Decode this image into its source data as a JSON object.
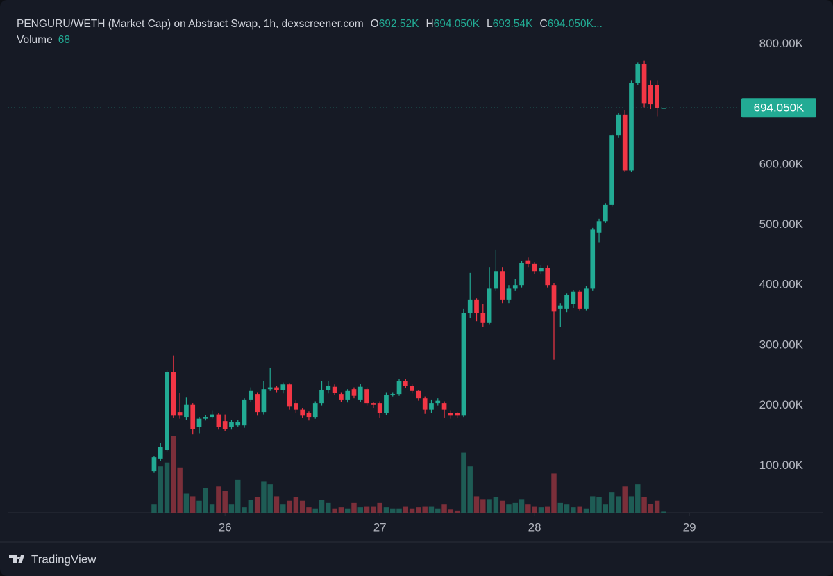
{
  "chart_data": {
    "type": "candlestick",
    "title": "PENGURU/WETH (Market Cap) on Abstract Swap, 1h, dexscreener.com",
    "legend_keys": [
      "O",
      "H",
      "L",
      "C"
    ],
    "last_bar_labels": {
      "open": "692.52K",
      "high": "694.050K",
      "low": "693.54K",
      "close": "694.050K..."
    },
    "volume_label": "Volume",
    "price_label": "694.050K",
    "brand": "TradingView",
    "up_color": "#22ab94",
    "down_color": "#f23645",
    "up_volume_color": "#1e5c55",
    "down_volume_color": "#7b2f3a",
    "x": [
      -11,
      -10,
      -9,
      -8,
      -7,
      -6,
      -5,
      -4,
      -3,
      -2,
      -1,
      0,
      1,
      2,
      3,
      4,
      5,
      6,
      7,
      8,
      9,
      10,
      11,
      12,
      13,
      14,
      15,
      16,
      17,
      18,
      19,
      20,
      21,
      22,
      23,
      24,
      25,
      26,
      27,
      28,
      29,
      30,
      31,
      32,
      33,
      34,
      35,
      36,
      37,
      38,
      39,
      40,
      41,
      42,
      43,
      44,
      45,
      46,
      47,
      48,
      49,
      50,
      51,
      52,
      53,
      54,
      55,
      56,
      57,
      58,
      59,
      60,
      61,
      62,
      63,
      64,
      65,
      66,
      67,
      68
    ],
    "open": [
      91,
      112,
      126,
      256,
      189,
      181,
      201,
      164,
      178,
      181,
      185,
      174,
      164,
      167,
      167,
      210,
      219,
      189,
      227,
      230,
      225,
      235,
      204,
      193,
      187,
      181,
      204,
      225,
      231,
      219,
      210,
      227,
      210,
      227,
      204,
      204,
      187,
      218,
      219,
      241,
      232,
      224,
      212,
      193,
      204,
      204,
      187,
      187,
      183,
      354,
      375,
      354,
      337,
      394,
      423,
      375,
      394,
      400,
      441,
      435,
      423,
      429,
      400,
      360,
      360,
      368,
      389,
      360,
      394,
      487,
      506,
      533,
      648,
      683,
      590,
      735,
      767,
      732,
      732,
      692.52
    ],
    "high": [
      116,
      138,
      258,
      283,
      221,
      213,
      204,
      181,
      184,
      192,
      188,
      185,
      176,
      176,
      212,
      230,
      222,
      240,
      263,
      233,
      238,
      237,
      210,
      196,
      190,
      207,
      240,
      240,
      235,
      222,
      227,
      230,
      236,
      230,
      206,
      207,
      222,
      222,
      244,
      244,
      235,
      226,
      215,
      210,
      212,
      207,
      192,
      189,
      360,
      420,
      378,
      368,
      430,
      458,
      430,
      400,
      410,
      440,
      446,
      438,
      433,
      432,
      403,
      370,
      386,
      392,
      392,
      398,
      495,
      510,
      536,
      650,
      686,
      690,
      740,
      770,
      772,
      740,
      740,
      694.05
    ],
    "low": [
      88,
      108,
      124,
      180,
      178,
      176,
      152,
      154,
      175,
      178,
      160,
      158,
      160,
      165,
      163,
      206,
      183,
      185,
      224,
      222,
      220,
      193,
      188,
      180,
      175,
      178,
      200,
      220,
      218,
      206,
      205,
      212,
      206,
      200,
      196,
      180,
      184,
      215,
      216,
      229,
      220,
      208,
      186,
      188,
      200,
      180,
      178,
      180,
      181,
      345,
      340,
      330,
      334,
      390,
      370,
      370,
      390,
      396,
      430,
      418,
      418,
      396,
      276,
      330,
      355,
      362,
      358,
      358,
      390,
      470,
      503,
      530,
      645,
      588,
      588,
      732,
      695,
      692,
      680,
      693.54
    ],
    "close": [
      114,
      131,
      256,
      183,
      183,
      201,
      161,
      178,
      181,
      185,
      164,
      161,
      173,
      172,
      210,
      224,
      189,
      227,
      230,
      225,
      235,
      198,
      193,
      183,
      181,
      204,
      225,
      233,
      221,
      210,
      224,
      216,
      231,
      204,
      201,
      187,
      218,
      219,
      241,
      232,
      224,
      212,
      193,
      204,
      208,
      193,
      183,
      183,
      354,
      375,
      354,
      337,
      394,
      423,
      375,
      394,
      400,
      437,
      435,
      423,
      429,
      400,
      356,
      366,
      383,
      389,
      360,
      394,
      492,
      506,
      533,
      648,
      683,
      590,
      735,
      767,
      702,
      700,
      694,
      694.05
    ],
    "volume": [
      510,
      2890,
      3128,
      4760,
      2822,
      1190,
      1020,
      748,
      1530,
      510,
      1632,
      1360,
      510,
      2040,
      340,
      816,
      952,
      1972,
      1768,
      1020,
      510,
      748,
      952,
      748,
      340,
      272,
      816,
      612,
      272,
      340,
      272,
      612,
      340,
      408,
      408,
      612,
      340,
      272,
      272,
      408,
      272,
      340,
      408,
      408,
      272,
      510,
      204,
      136,
      3740,
      2890,
      1020,
      850,
      850,
      952,
      748,
      510,
      612,
      850,
      510,
      408,
      340,
      408,
      2448,
      612,
      510,
      340,
      408,
      272,
      1020,
      952,
      510,
      1292,
      1020,
      1632,
      1020,
      1768,
      952,
      544,
      748,
      68
    ],
    "xlim": [
      -33.6,
      79.2
    ],
    "xticks": [
      {
        "value": 0,
        "label": "26"
      },
      {
        "value": 24,
        "label": "27"
      },
      {
        "value": 48,
        "label": "28"
      },
      {
        "value": 72,
        "label": "29"
      }
    ],
    "ylim": [
      21.9,
      861.6
    ],
    "yticks": [
      {
        "value": 100,
        "label": "100.00K"
      },
      {
        "value": 200,
        "label": "200.00K"
      },
      {
        "value": 300,
        "label": "300.00K"
      },
      {
        "value": 400,
        "label": "400.00K"
      },
      {
        "value": 500,
        "label": "500.00K"
      },
      {
        "value": 600,
        "label": "600.00K"
      },
      {
        "value": 800,
        "label": "800.00K"
      }
    ]
  }
}
